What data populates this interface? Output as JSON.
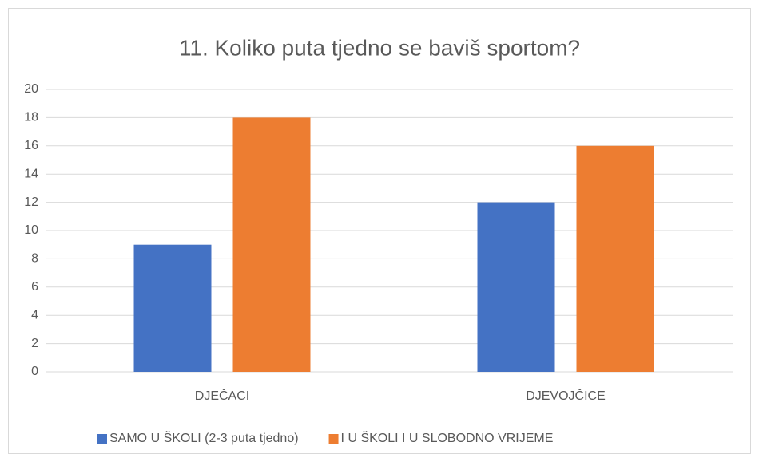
{
  "chart_data": {
    "type": "bar",
    "title": "11. Koliko puta tjedno se baviš sportom?",
    "categories": [
      "DJEČACI",
      "DJEVOJČICE"
    ],
    "series": [
      {
        "name": "SAMO U ŠKOLI (2-3 puta tjedno)",
        "color": "#4472c4",
        "values": [
          9,
          12
        ]
      },
      {
        "name": "I U ŠKOLI I U SLOBODNO VRIJEME",
        "color": "#ed7d31",
        "values": [
          18,
          16
        ]
      }
    ],
    "ylim": [
      0,
      20
    ],
    "yticks": [
      0,
      2,
      4,
      6,
      8,
      10,
      12,
      14,
      16,
      18,
      20
    ],
    "grid": true,
    "legend": "bottom"
  }
}
